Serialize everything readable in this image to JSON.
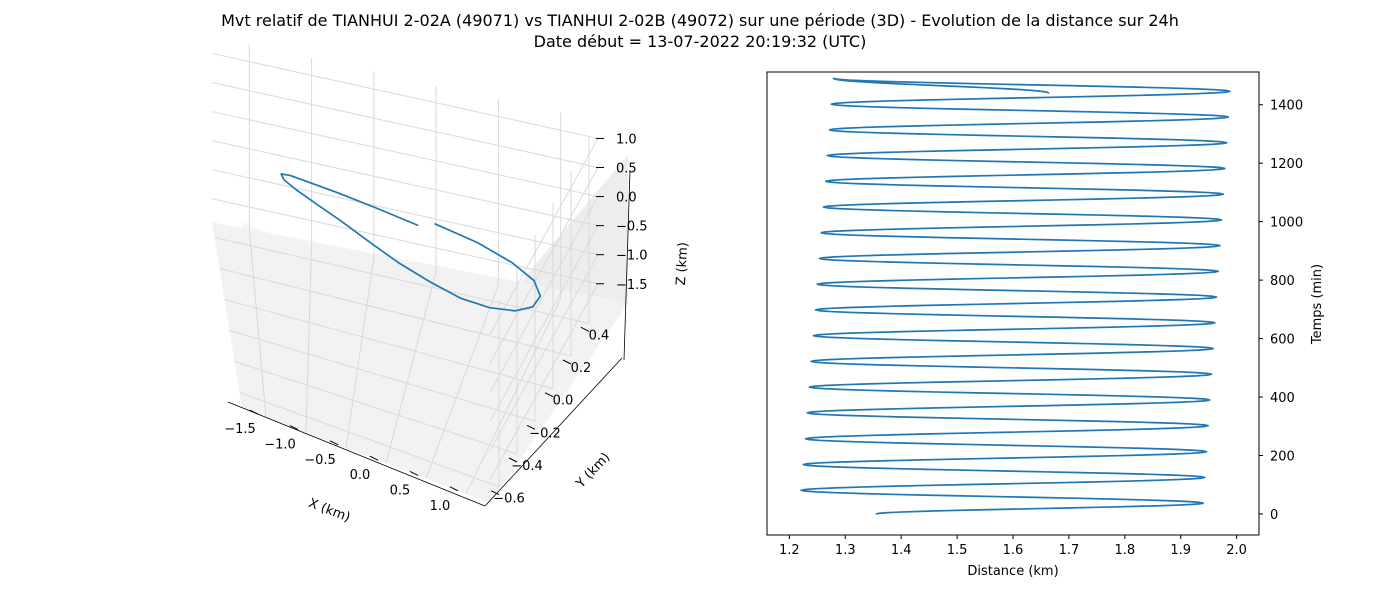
{
  "figure": {
    "title_line1": "Mvt relatif de TIANHUI 2-02A (49071) vs TIANHUI 2-02B (49072) sur une période (3D) - Evolution de la distance sur 24h",
    "title_line2": "Date début = 13-07-2022 20:19:32 (UTC)"
  },
  "colors": {
    "series": "#1f77b4",
    "pane": "#f2f2f2",
    "grid": "#d9d9d9",
    "axis": "#000000"
  },
  "chart_data": [
    {
      "type": "line",
      "projection": "3d",
      "xlabel": "X (km)",
      "ylabel": "Y (km)",
      "zlabel": "Z (km)",
      "x_ticks": [
        -1.5,
        -1.0,
        -0.5,
        0.0,
        0.5,
        1.0
      ],
      "y_ticks": [
        -0.6,
        -0.4,
        -0.2,
        0.0,
        0.2,
        0.4
      ],
      "z_ticks": [
        -1.5,
        -1.0,
        -0.5,
        0.0,
        0.5,
        1.0
      ],
      "x_tick_labels": [
        "−1.5",
        "−1.0",
        "−0.5",
        "0.0",
        "0.5",
        "1.0"
      ],
      "y_tick_labels": [
        "−0.6",
        "−0.4",
        "−0.2",
        "0.0",
        "0.2",
        "0.4"
      ],
      "z_tick_labels": [
        "−1.5",
        "−1.0",
        "−0.5",
        "0.0",
        "0.5",
        "1.0"
      ],
      "xlim": [
        -1.8,
        1.3
      ],
      "ylim": [
        -0.7,
        0.5
      ],
      "zlim": [
        -1.9,
        1.3
      ],
      "grid": true,
      "series": [
        {
          "x": [
            0.0,
            0.35,
            0.67,
            0.92,
            1.08,
            1.14,
            1.1,
            0.95,
            0.72,
            0.42,
            0.07,
            -0.29,
            -0.62,
            -0.91,
            -1.12,
            -1.24,
            -1.26,
            -1.18,
            -1.01,
            -0.77,
            -0.48,
            -0.14
          ],
          "y": [
            0.47,
            0.46,
            0.39,
            0.28,
            0.13,
            -0.04,
            -0.2,
            -0.34,
            -0.45,
            -0.51,
            -0.53,
            -0.5,
            -0.43,
            -0.33,
            -0.2,
            -0.05,
            0.11,
            0.25,
            0.36,
            0.44,
            0.48,
            0.48
          ],
          "z": [
            -1.0,
            -1.13,
            -1.13,
            -1.01,
            -0.78,
            -0.46,
            -0.1,
            0.27,
            0.62,
            0.91,
            1.11,
            1.21,
            1.2,
            1.08,
            0.86,
            0.57,
            0.23,
            -0.13,
            -0.47,
            -0.76,
            -0.98,
            -1.12
          ]
        }
      ]
    },
    {
      "type": "line",
      "xlabel": "Distance (km)",
      "ylabel": "Temps (min)",
      "xlim": [
        1.16,
        2.04
      ],
      "ylim": [
        -72,
        1512
      ],
      "x_ticks": [
        1.2,
        1.3,
        1.4,
        1.5,
        1.6,
        1.7,
        1.8,
        1.9,
        2.0
      ],
      "y_ticks": [
        0,
        200,
        400,
        600,
        800,
        1000,
        1200,
        1400
      ],
      "yaxis_position": "right",
      "grid": false,
      "series": [
        {
          "x": [
            1.355,
            1.94,
            1.221,
            1.943,
            1.225,
            1.946,
            1.229,
            1.949,
            1.232,
            1.952,
            1.236,
            1.955,
            1.239,
            1.958,
            1.243,
            1.961,
            1.247,
            1.964,
            1.25,
            1.967,
            1.254,
            1.97,
            1.257,
            1.973,
            1.261,
            1.976,
            1.265,
            1.979,
            1.268,
            1.982,
            1.272,
            1.985,
            1.275,
            1.988,
            1.279,
            1.664
          ],
          "y": [
            0,
            37,
            81,
            125,
            169,
            213,
            257,
            302,
            346,
            390,
            434,
            478,
            522,
            566,
            610,
            654,
            698,
            742,
            786,
            830,
            874,
            918,
            962,
            1006,
            1050,
            1094,
            1138,
            1182,
            1226,
            1270,
            1314,
            1358,
            1402,
            1446,
            1490,
            1440
          ]
        }
      ]
    }
  ]
}
